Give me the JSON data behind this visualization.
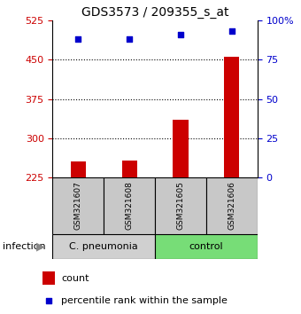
{
  "title": "GDS3573 / 209355_s_at",
  "samples": [
    "GSM321607",
    "GSM321608",
    "GSM321605",
    "GSM321606"
  ],
  "counts": [
    255,
    258,
    335,
    455
  ],
  "percentiles": [
    88,
    88,
    91,
    93
  ],
  "ylim_left": [
    225,
    525
  ],
  "ylim_right": [
    0,
    100
  ],
  "yticks_left": [
    225,
    300,
    375,
    450,
    525
  ],
  "yticks_right": [
    0,
    25,
    50,
    75,
    100
  ],
  "ytick_labels_right": [
    "0",
    "25",
    "50",
    "75",
    "100%"
  ],
  "hlines": [
    300,
    375,
    450
  ],
  "bar_color": "#cc0000",
  "scatter_color": "#0000cc",
  "group_labels": [
    "C. pneumonia",
    "control"
  ],
  "group_colors_bg": [
    "#d0d0d0",
    "#77dd77"
  ],
  "sample_box_color": "#c8c8c8",
  "group_ranges": [
    [
      0,
      2
    ],
    [
      2,
      4
    ]
  ],
  "left_tick_color": "#cc0000",
  "right_tick_color": "#0000cc",
  "infection_label": "infection",
  "bar_width": 0.3
}
